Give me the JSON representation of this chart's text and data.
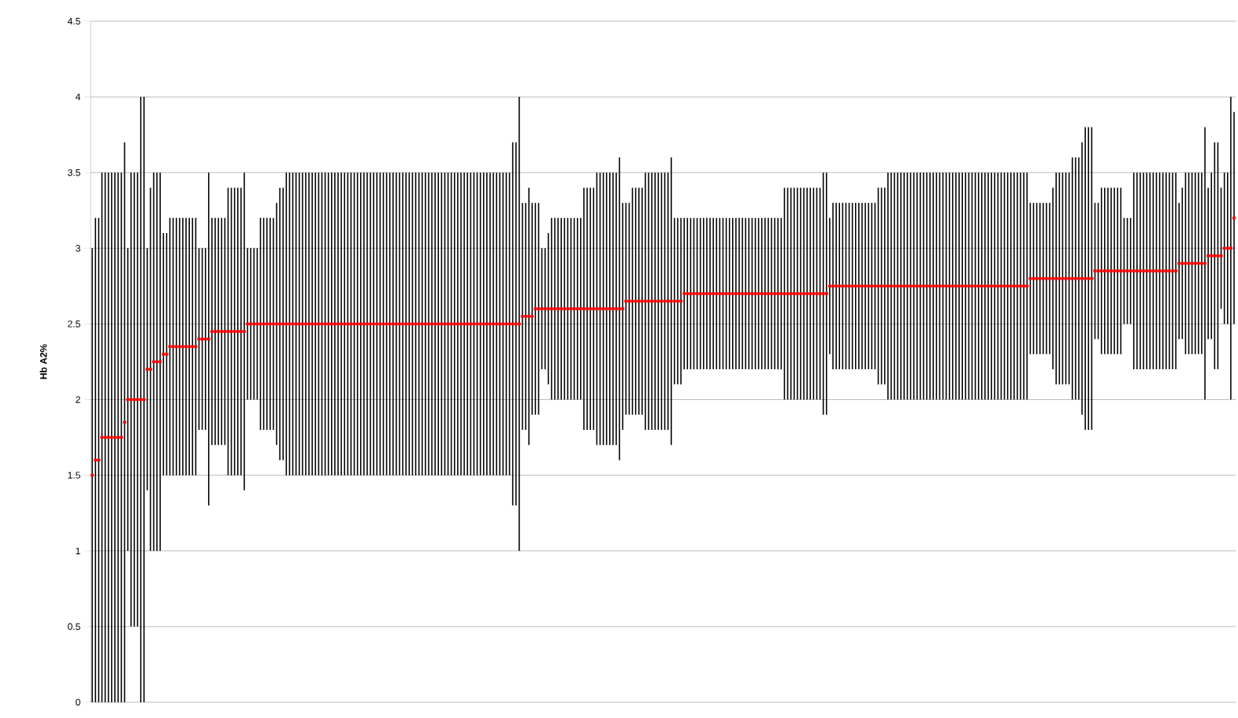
{
  "chart_data": {
    "type": "bar",
    "ylabel": "Hb A2%",
    "ylim": [
      0,
      4.5
    ],
    "yticks": [
      0,
      0.5,
      1,
      1.5,
      2,
      2.5,
      3,
      3.5,
      4,
      4.5
    ],
    "grid": "y",
    "categories": [
      null,
      null,
      null,
      null,
      null,
      null,
      null,
      null,
      null,
      null,
      null,
      null,
      null,
      null,
      null,
      null,
      null,
      null,
      null,
      null,
      null,
      null,
      null,
      null,
      null,
      null,
      null,
      null,
      null,
      null,
      null,
      null,
      null,
      null,
      null,
      null,
      null,
      null,
      null,
      null,
      null,
      null,
      null,
      null,
      null,
      null,
      null,
      null,
      null,
      null,
      null,
      null,
      null,
      null,
      null,
      null,
      null,
      null,
      null,
      null,
      null,
      null,
      null,
      null,
      null,
      null,
      null,
      null,
      null,
      null,
      null,
      null,
      null,
      null,
      null,
      null,
      null,
      null,
      null,
      null,
      null,
      null,
      null,
      null,
      null,
      null,
      null,
      null,
      null,
      null,
      null,
      null,
      null,
      null,
      null,
      null,
      null,
      null,
      null,
      null,
      null,
      null,
      null,
      null,
      null,
      null,
      null,
      null,
      null,
      null,
      null,
      null,
      null,
      null,
      null,
      null,
      null,
      null,
      null,
      null,
      null,
      null,
      null,
      null,
      null,
      null,
      null,
      null,
      null,
      null,
      null,
      null,
      null,
      null,
      null,
      null,
      null,
      null,
      null,
      null,
      null,
      null,
      null,
      null,
      null,
      null,
      null,
      null,
      null,
      null,
      null,
      null,
      null,
      null,
      null,
      null,
      null,
      null,
      null,
      null,
      null,
      null,
      null,
      null,
      null,
      null,
      null,
      null,
      null,
      null,
      null,
      null,
      null,
      null,
      null,
      null,
      null,
      null,
      null,
      null,
      null,
      null,
      null,
      null,
      null,
      null,
      null,
      null,
      null,
      null,
      null,
      null,
      null,
      null,
      null,
      null,
      null,
      null,
      null,
      null,
      null,
      null,
      null,
      null,
      null,
      null,
      null,
      null,
      null,
      null,
      null,
      null,
      null,
      null,
      null,
      null,
      null,
      null,
      null,
      null,
      null,
      null,
      null,
      null,
      null,
      null,
      null,
      null,
      null,
      null,
      null,
      null,
      null,
      null,
      null,
      null,
      null,
      null,
      null,
      null,
      null,
      null,
      null,
      null,
      null,
      null,
      null,
      null,
      null,
      null,
      null,
      null,
      null,
      null,
      null,
      null,
      null,
      null,
      null,
      null,
      null,
      null,
      null,
      null,
      null,
      null,
      null,
      null,
      null,
      null,
      null,
      null,
      null,
      null,
      null,
      null,
      null,
      null,
      null,
      null,
      null,
      null,
      null,
      null,
      null,
      null,
      null,
      null,
      null,
      null,
      null,
      null,
      null,
      null,
      null,
      null,
      null,
      null,
      null,
      null,
      null,
      null,
      null,
      null,
      null,
      null,
      null,
      null,
      null,
      null,
      null,
      null,
      null,
      null,
      null,
      null,
      null,
      null,
      null,
      null,
      null,
      null,
      null,
      null,
      null,
      null,
      null,
      null,
      null,
      null,
      null,
      null,
      null,
      null,
      null,
      null,
      null,
      null,
      null,
      null,
      null,
      null,
      null,
      null,
      null,
      null,
      null,
      null,
      null,
      null,
      null,
      null,
      null,
      null
    ],
    "series": [
      {
        "color": "#000000",
        "base": [
          0,
          0,
          0,
          0,
          0,
          0,
          0,
          0,
          0,
          0,
          0,
          1,
          0.5,
          0.5,
          0.5,
          0,
          0,
          1.4,
          1,
          1,
          1,
          1,
          1.5,
          1.5,
          1.5,
          1.5,
          1.5,
          1.5,
          1.5,
          1.5,
          1.5,
          1.5,
          1.5,
          1.8,
          1.8,
          1.8,
          1.3,
          1.7,
          1.7,
          1.7,
          1.7,
          1.7,
          1.5,
          1.5,
          1.5,
          1.5,
          1.5,
          1.4,
          2,
          2,
          2,
          2,
          1.8,
          1.8,
          1.8,
          1.8,
          1.8,
          1.7,
          1.6,
          1.6,
          1.5,
          1.5,
          1.5,
          1.5,
          1.5,
          1.5,
          1.5,
          1.5,
          1.5,
          1.5,
          1.5,
          1.5,
          1.5,
          1.5,
          1.5,
          1.5,
          1.5,
          1.5,
          1.5,
          1.5,
          1.5,
          1.5,
          1.5,
          1.5,
          1.5,
          1.5,
          1.5,
          1.5,
          1.5,
          1.5,
          1.5,
          1.5,
          1.5,
          1.5,
          1.5,
          1.5,
          1.5,
          1.5,
          1.5,
          1.5,
          1.5,
          1.5,
          1.5,
          1.5,
          1.5,
          1.5,
          1.5,
          1.5,
          1.5,
          1.5,
          1.5,
          1.5,
          1.5,
          1.5,
          1.5,
          1.5,
          1.5,
          1.5,
          1.5,
          1.5,
          1.5,
          1.5,
          1.5,
          1.5,
          1.5,
          1.5,
          1.5,
          1.5,
          1.5,
          1.5,
          1.3,
          1.3,
          1,
          1.8,
          1.8,
          1.7,
          1.9,
          1.9,
          1.9,
          2.2,
          2.2,
          2.1,
          2,
          2,
          2,
          2,
          2,
          2,
          2,
          2,
          2,
          2,
          1.8,
          1.8,
          1.8,
          1.8,
          1.7,
          1.7,
          1.7,
          1.7,
          1.7,
          1.7,
          1.7,
          1.6,
          1.8,
          1.9,
          1.9,
          1.9,
          1.9,
          1.9,
          1.9,
          1.8,
          1.8,
          1.8,
          1.8,
          1.8,
          1.8,
          1.8,
          1.8,
          1.7,
          2.1,
          2.1,
          2.1,
          2.2,
          2.2,
          2.2,
          2.2,
          2.2,
          2.2,
          2.2,
          2.2,
          2.2,
          2.2,
          2.2,
          2.2,
          2.2,
          2.2,
          2.2,
          2.2,
          2.2,
          2.2,
          2.2,
          2.2,
          2.2,
          2.2,
          2.2,
          2.2,
          2.2,
          2.2,
          2.2,
          2.2,
          2.2,
          2.2,
          2.2,
          2,
          2,
          2,
          2,
          2,
          2,
          2,
          2,
          2,
          2,
          2,
          2,
          1.9,
          1.9,
          2.3,
          2.2,
          2.2,
          2.2,
          2.2,
          2.2,
          2.2,
          2.2,
          2.2,
          2.2,
          2.2,
          2.2,
          2.2,
          2.2,
          2.2,
          2.1,
          2.1,
          2.1,
          2,
          2,
          2,
          2,
          2,
          2,
          2,
          2,
          2,
          2,
          2,
          2,
          2,
          2,
          2,
          2,
          2,
          2,
          2,
          2,
          2,
          2,
          2,
          2,
          2,
          2,
          2,
          2,
          2,
          2,
          2,
          2,
          2,
          2,
          2,
          2,
          2,
          2,
          2,
          2,
          2,
          2,
          2,
          2,
          2.3,
          2.3,
          2.3,
          2.3,
          2.3,
          2.3,
          2.3,
          2.2,
          2.1,
          2.1,
          2.1,
          2.1,
          2.1,
          2,
          2,
          2,
          1.9,
          1.8,
          1.8,
          1.8,
          2.4,
          2.4,
          2.3,
          2.3,
          2.3,
          2.3,
          2.3,
          2.3,
          2.3,
          2.5,
          2.5,
          2.5,
          2.2,
          2.2,
          2.2,
          2.2,
          2.2,
          2.2,
          2.2,
          2.2,
          2.2,
          2.2,
          2.2,
          2.2,
          2.2,
          2.2,
          2.4,
          2.4,
          2.3,
          2.3,
          2.3,
          2.3,
          2.3,
          2.3,
          2,
          2.4,
          2.4,
          2.2,
          2.2,
          2.6,
          2.5,
          2.5,
          2,
          2.5
        ],
        "values": [
          3,
          3.2,
          3.2,
          3.5,
          3.5,
          3.5,
          3.5,
          3.5,
          3.5,
          3.5,
          3.7,
          2,
          3,
          3,
          3,
          4,
          4,
          1.6,
          2.4,
          2.5,
          2.5,
          2.5,
          1.6,
          1.6,
          1.7,
          1.7,
          1.7,
          1.7,
          1.7,
          1.7,
          1.7,
          1.7,
          1.7,
          1.2,
          1.2,
          1.2,
          2.2,
          1.5,
          1.5,
          1.5,
          1.5,
          1.5,
          1.9,
          1.9,
          1.9,
          1.9,
          1.9,
          2.1,
          1,
          1,
          1,
          1,
          1.4,
          1.4,
          1.4,
          1.4,
          1.4,
          1.6,
          1.8,
          1.8,
          2,
          2,
          2,
          2,
          2,
          2,
          2,
          2,
          2,
          2,
          2,
          2,
          2,
          2,
          2,
          2,
          2,
          2,
          2,
          2,
          2,
          2,
          2,
          2,
          2,
          2,
          2,
          2,
          2,
          2,
          2,
          2,
          2,
          2,
          2,
          2,
          2,
          2,
          2,
          2,
          2,
          2,
          2,
          2,
          2,
          2,
          2,
          2,
          2,
          2,
          2,
          2,
          2,
          2,
          2,
          2,
          2,
          2,
          2,
          2,
          2,
          2,
          2,
          2,
          2,
          2,
          2,
          2,
          2,
          2,
          2.4,
          2.4,
          3,
          1.5,
          1.5,
          1.7,
          1.4,
          1.4,
          1.4,
          0.8,
          0.8,
          1,
          1.2,
          1.2,
          1.2,
          1.2,
          1.2,
          1.2,
          1.2,
          1.2,
          1.2,
          1.2,
          1.6,
          1.6,
          1.6,
          1.6,
          1.8,
          1.8,
          1.8,
          1.8,
          1.8,
          1.8,
          1.8,
          2,
          1.5,
          1.4,
          1.4,
          1.5,
          1.5,
          1.5,
          1.5,
          1.7,
          1.7,
          1.7,
          1.7,
          1.7,
          1.7,
          1.7,
          1.7,
          1.9,
          1.1,
          1.1,
          1.1,
          1,
          1,
          1,
          1,
          1,
          1,
          1,
          1,
          1,
          1,
          1,
          1,
          1,
          1,
          1,
          1,
          1,
          1,
          1,
          1,
          1,
          1,
          1,
          1,
          1,
          1,
          1,
          1,
          1,
          1,
          1,
          1.4,
          1.4,
          1.4,
          1.4,
          1.4,
          1.4,
          1.4,
          1.4,
          1.4,
          1.4,
          1.4,
          1.4,
          1.6,
          1.6,
          0.9,
          1.1,
          1.1,
          1.1,
          1.1,
          1.1,
          1.1,
          1.1,
          1.1,
          1.1,
          1.1,
          1.1,
          1.1,
          1.1,
          1.1,
          1.3,
          1.3,
          1.3,
          1.5,
          1.5,
          1.5,
          1.5,
          1.5,
          1.5,
          1.5,
          1.5,
          1.5,
          1.5,
          1.5,
          1.5,
          1.5,
          1.5,
          1.5,
          1.5,
          1.5,
          1.5,
          1.5,
          1.5,
          1.5,
          1.5,
          1.5,
          1.5,
          1.5,
          1.5,
          1.5,
          1.5,
          1.5,
          1.5,
          1.5,
          1.5,
          1.5,
          1.5,
          1.5,
          1.5,
          1.5,
          1.5,
          1.5,
          1.5,
          1.5,
          1.5,
          1.5,
          1.5,
          1,
          1,
          1,
          1,
          1,
          1,
          1,
          1.2,
          1.4,
          1.4,
          1.4,
          1.4,
          1.4,
          1.6,
          1.6,
          1.6,
          1.8,
          2,
          2,
          2,
          0.9,
          0.9,
          1.1,
          1.1,
          1.1,
          1.1,
          1.1,
          1.1,
          1.1,
          0.7,
          0.7,
          0.7,
          1.3,
          1.3,
          1.3,
          1.3,
          1.3,
          1.3,
          1.3,
          1.3,
          1.3,
          1.3,
          1.3,
          1.3,
          1.3,
          1.3,
          0.9,
          1,
          1.2,
          1.2,
          1.2,
          1.2,
          1.2,
          1.2,
          1.8,
          1,
          1.1,
          1.5,
          1.5,
          0.8,
          1,
          1,
          2,
          1.4
        ]
      },
      {
        "type": "scatter",
        "color": "#ff0000",
        "values": [
          1.5,
          1.6,
          1.6,
          1.75,
          1.75,
          1.75,
          1.75,
          1.75,
          1.75,
          1.75,
          1.85,
          2,
          2,
          2,
          2,
          2,
          2,
          2.2,
          2.2,
          2.25,
          2.25,
          2.25,
          2.3,
          2.3,
          2.35,
          2.35,
          2.35,
          2.35,
          2.35,
          2.35,
          2.35,
          2.35,
          2.35,
          2.4,
          2.4,
          2.4,
          2.4,
          2.45,
          2.45,
          2.45,
          2.45,
          2.45,
          2.45,
          2.45,
          2.45,
          2.45,
          2.45,
          2.45,
          2.5,
          2.5,
          2.5,
          2.5,
          2.5,
          2.5,
          2.5,
          2.5,
          2.5,
          2.5,
          2.5,
          2.5,
          2.5,
          2.5,
          2.5,
          2.5,
          2.5,
          2.5,
          2.5,
          2.5,
          2.5,
          2.5,
          2.5,
          2.5,
          2.5,
          2.5,
          2.5,
          2.5,
          2.5,
          2.5,
          2.5,
          2.5,
          2.5,
          2.5,
          2.5,
          2.5,
          2.5,
          2.5,
          2.5,
          2.5,
          2.5,
          2.5,
          2.5,
          2.5,
          2.5,
          2.5,
          2.5,
          2.5,
          2.5,
          2.5,
          2.5,
          2.5,
          2.5,
          2.5,
          2.5,
          2.5,
          2.5,
          2.5,
          2.5,
          2.5,
          2.5,
          2.5,
          2.5,
          2.5,
          2.5,
          2.5,
          2.5,
          2.5,
          2.5,
          2.5,
          2.5,
          2.5,
          2.5,
          2.5,
          2.5,
          2.5,
          2.5,
          2.5,
          2.5,
          2.5,
          2.5,
          2.5,
          2.5,
          2.5,
          2.5,
          2.55,
          2.55,
          2.55,
          2.55,
          2.6,
          2.6,
          2.6,
          2.6,
          2.6,
          2.6,
          2.6,
          2.6,
          2.6,
          2.6,
          2.6,
          2.6,
          2.6,
          2.6,
          2.6,
          2.6,
          2.6,
          2.6,
          2.6,
          2.6,
          2.6,
          2.6,
          2.6,
          2.6,
          2.6,
          2.6,
          2.6,
          2.6,
          2.65,
          2.65,
          2.65,
          2.65,
          2.65,
          2.65,
          2.65,
          2.65,
          2.65,
          2.65,
          2.65,
          2.65,
          2.65,
          2.65,
          2.65,
          2.65,
          2.65,
          2.65,
          2.7,
          2.7,
          2.7,
          2.7,
          2.7,
          2.7,
          2.7,
          2.7,
          2.7,
          2.7,
          2.7,
          2.7,
          2.7,
          2.7,
          2.7,
          2.7,
          2.7,
          2.7,
          2.7,
          2.7,
          2.7,
          2.7,
          2.7,
          2.7,
          2.7,
          2.7,
          2.7,
          2.7,
          2.7,
          2.7,
          2.7,
          2.7,
          2.7,
          2.7,
          2.7,
          2.7,
          2.7,
          2.7,
          2.7,
          2.7,
          2.7,
          2.7,
          2.7,
          2.7,
          2.7,
          2.75,
          2.75,
          2.75,
          2.75,
          2.75,
          2.75,
          2.75,
          2.75,
          2.75,
          2.75,
          2.75,
          2.75,
          2.75,
          2.75,
          2.75,
          2.75,
          2.75,
          2.75,
          2.75,
          2.75,
          2.75,
          2.75,
          2.75,
          2.75,
          2.75,
          2.75,
          2.75,
          2.75,
          2.75,
          2.75,
          2.75,
          2.75,
          2.75,
          2.75,
          2.75,
          2.75,
          2.75,
          2.75,
          2.75,
          2.75,
          2.75,
          2.75,
          2.75,
          2.75,
          2.75,
          2.75,
          2.75,
          2.75,
          2.75,
          2.75,
          2.75,
          2.75,
          2.75,
          2.75,
          2.75,
          2.75,
          2.75,
          2.75,
          2.75,
          2.75,
          2.75,
          2.75,
          2.8,
          2.8,
          2.8,
          2.8,
          2.8,
          2.8,
          2.8,
          2.8,
          2.8,
          2.8,
          2.8,
          2.8,
          2.8,
          2.8,
          2.8,
          2.8,
          2.8,
          2.8,
          2.8,
          2.8,
          2.85,
          2.85,
          2.85,
          2.85,
          2.85,
          2.85,
          2.85,
          2.85,
          2.85,
          2.85,
          2.85,
          2.85,
          2.85,
          2.85,
          2.85,
          2.85,
          2.85,
          2.85,
          2.85,
          2.85,
          2.85,
          2.85,
          2.85,
          2.85,
          2.85,
          2.85,
          2.9,
          2.9,
          2.9,
          2.9,
          2.9,
          2.9,
          2.9,
          2.9,
          2.9,
          2.95,
          2.95,
          2.95,
          2.95,
          2.95,
          3,
          3,
          3,
          3.2
        ]
      }
    ]
  }
}
